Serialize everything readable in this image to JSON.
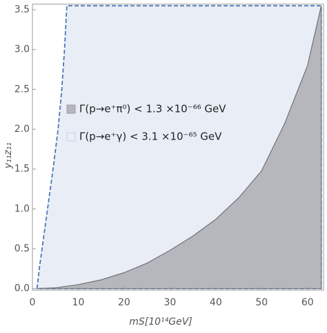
{
  "chart_data": {
    "type": "region",
    "xlabel": "mS[10¹⁴GeV]",
    "ylabel": "y₁₁z₁₁",
    "xlim": [
      0,
      63.5
    ],
    "ylim": [
      -0.02,
      3.57
    ],
    "xticks": [
      0,
      10,
      20,
      30,
      40,
      50,
      60
    ],
    "yticks": [
      {
        "value": 0,
        "label": "0.0"
      },
      0.5,
      {
        "value": 1,
        "label": "1.0"
      },
      1.5,
      {
        "value": 2,
        "label": "2.0"
      },
      2.5,
      {
        "value": 3,
        "label": "3.0"
      },
      3.5
    ],
    "legend_loc": "center left",
    "series": [
      {
        "name": "Γ(p→e⁺π⁰) < 1.3 ×10⁻⁶⁶ GeV",
        "color": "#b5b7bc",
        "line": "solid",
        "x": [
          1,
          5,
          10,
          15,
          20,
          25,
          30,
          35,
          40,
          45,
          50,
          55,
          60,
          63,
          63
        ],
        "y": [
          0,
          0.01,
          0.05,
          0.11,
          0.2,
          0.32,
          0.48,
          0.66,
          0.87,
          1.14,
          1.48,
          2.07,
          2.8,
          3.55,
          0
        ]
      },
      {
        "name": "Γ(p→e⁺γ) < 3.1 ×10⁻⁶⁵ GeV",
        "color": "#e9eef6",
        "line": "dashed",
        "x": [
          1,
          1.5,
          2.1,
          3.3,
          4.5,
          5.6,
          6.4,
          7,
          7.5,
          63,
          63
        ],
        "y": [
          0,
          0.25,
          0.5,
          1,
          1.5,
          2,
          2.5,
          3,
          3.55,
          3.55,
          0
        ]
      }
    ]
  }
}
